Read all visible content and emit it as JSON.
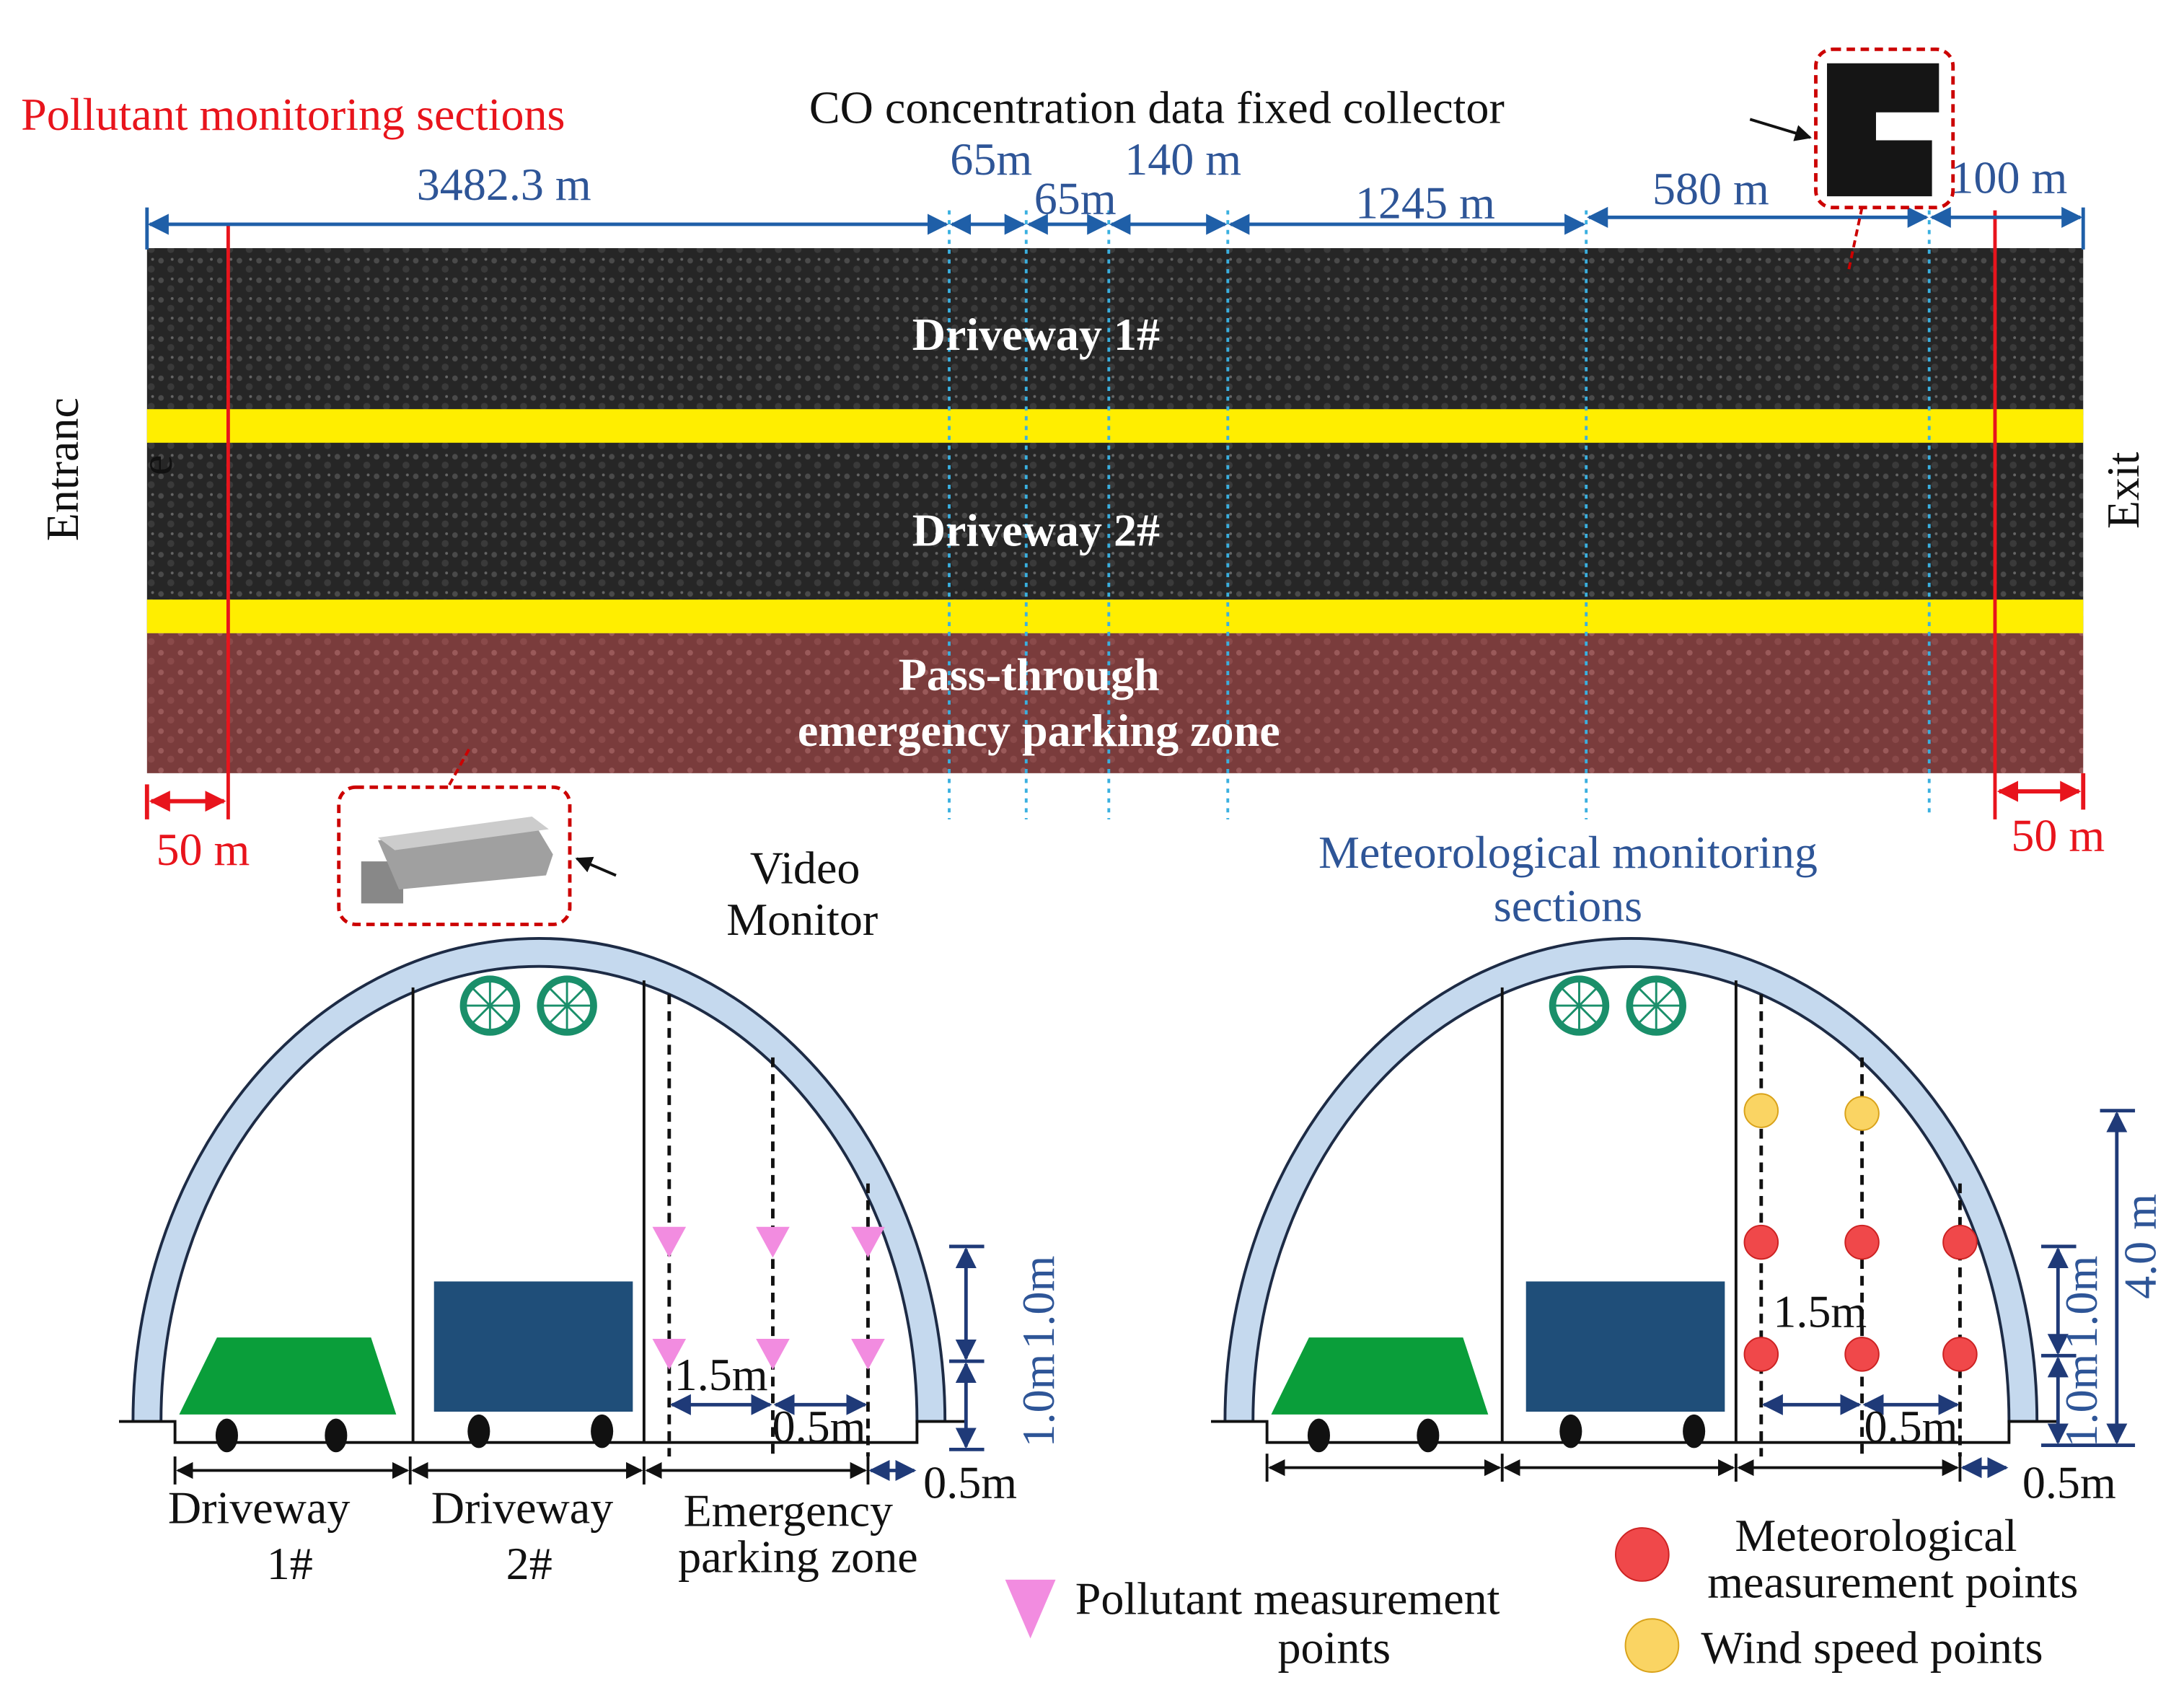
{
  "top": {
    "pollutant_sections": "Pollutant monitoring sections",
    "collector": "CO concentration data fixed collector",
    "distances": [
      "3482.3 m",
      "65m",
      "65m",
      "140 m",
      "1245 m",
      "580 m",
      "100 m"
    ],
    "lanes": [
      "Driveway 1#",
      "Driveway 2#"
    ],
    "zone": [
      "Pass-through",
      "emergency parking zone"
    ],
    "entrance": [
      "Entranc",
      "e"
    ],
    "exit": "Exit",
    "edge_left": "50 m",
    "edge_right": "50 m",
    "video": [
      "Video",
      "Monitor"
    ],
    "met_sections": [
      "Meteorological monitoring",
      "sections"
    ]
  },
  "left_section": {
    "spacing": "1.5m",
    "offset": "0.5m",
    "wall": "0.5m",
    "heights": [
      "1.0m",
      "1.0m"
    ],
    "lanes": [
      [
        "Driveway",
        "1#"
      ],
      [
        "Driveway",
        "2#"
      ],
      [
        "Emergency",
        "parking zone"
      ]
    ]
  },
  "right_section": {
    "spacing": "1.5m",
    "offset": "0.5m",
    "wall": "0.5m",
    "heights": [
      "1.0m",
      "1.0m"
    ],
    "total": "4.0 m"
  },
  "legend": {
    "pollutant": [
      "Pollutant measurement",
      "points"
    ],
    "meteorological": [
      "Meteorological",
      "measurement points"
    ],
    "wind": "Wind speed points"
  }
}
